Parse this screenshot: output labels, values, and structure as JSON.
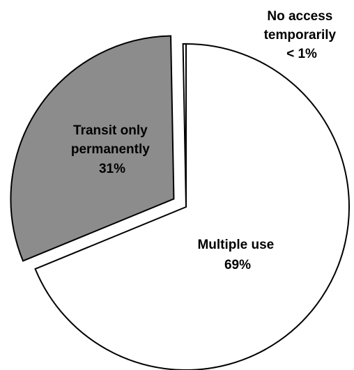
{
  "chart_data": {
    "type": "pie",
    "title": "",
    "slices": [
      {
        "label_lines": [
          "Multiple use"
        ],
        "value": 69,
        "value_label": "69%",
        "color": "#ffffff"
      },
      {
        "label_lines": [
          "Transit only",
          "permanently"
        ],
        "value": 31,
        "value_label": "31%",
        "color": "#8c8c8c"
      },
      {
        "label_lines": [
          "No access",
          "temporarily"
        ],
        "value": 0.3,
        "value_label": "< 1%",
        "color": "#ffffff"
      }
    ],
    "exploded": [
      "Transit only permanently"
    ],
    "legend": "none",
    "edge_color": "#000000"
  }
}
